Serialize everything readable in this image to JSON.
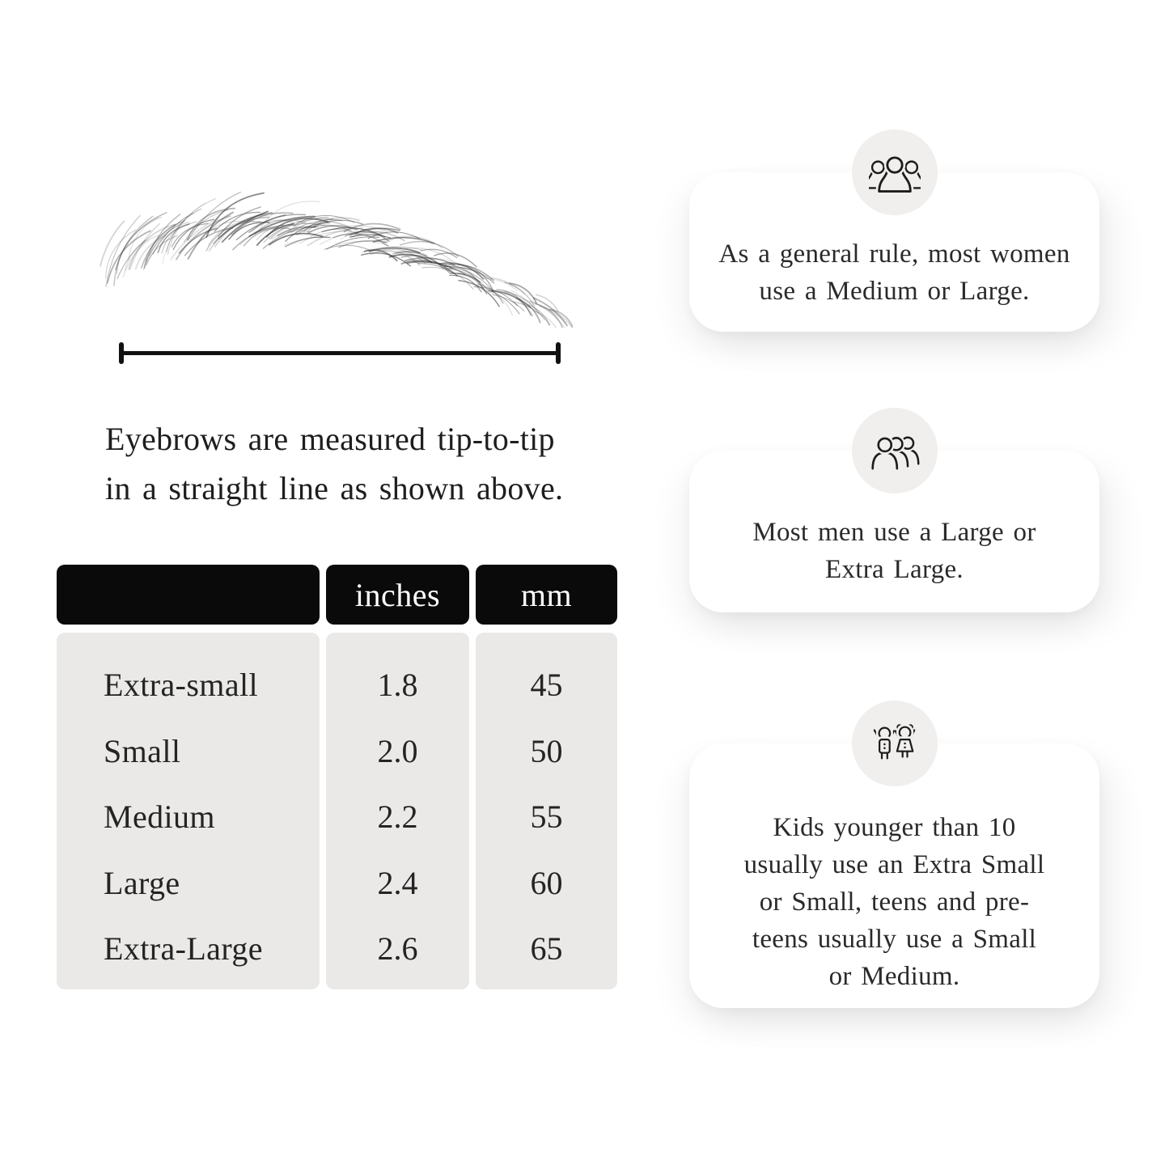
{
  "colors": {
    "page_bg": "#ffffff",
    "text": "#222222",
    "line": "#111111",
    "header_bg": "#0a0a0a",
    "header_text": "#ffffff",
    "body_bg": "#eae9e8",
    "card_bg": "#ffffff",
    "badge_bg": "#f0efee",
    "icon_ink": "#1c1c1c"
  },
  "measurement": {
    "caption_line1": "Eyebrows are measured tip-to-tip",
    "caption_line2": "in a straight line as shown above."
  },
  "size_table": {
    "columns": [
      "",
      "inches",
      "mm"
    ],
    "rows": [
      {
        "label": "Extra-small",
        "inches": "1.8",
        "mm": "45"
      },
      {
        "label": "Small",
        "inches": "2.0",
        "mm": "50"
      },
      {
        "label": "Medium",
        "inches": "2.2",
        "mm": "55"
      },
      {
        "label": "Large",
        "inches": "2.4",
        "mm": "60"
      },
      {
        "label": "Extra-Large",
        "inches": "2.6",
        "mm": "65"
      }
    ]
  },
  "info_cards": [
    {
      "icon": "women-group-icon",
      "text": "As a general rule, most women use a Medium or Large."
    },
    {
      "icon": "men-group-icon",
      "text": "Most men use a Large or Extra Large."
    },
    {
      "icon": "kids-icon",
      "text": "Kids younger than 10 usually use an Extra Small or Small, teens and pre-teens usually use a Small or Medium."
    }
  ]
}
